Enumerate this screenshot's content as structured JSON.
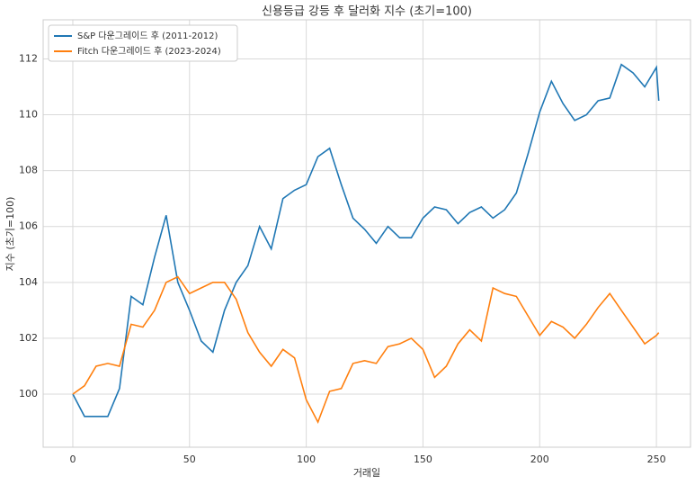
{
  "chart_data": {
    "type": "line",
    "title": "신용등급 강등 후 달러화 지수 (초기=100)",
    "xlabel": "거래일",
    "ylabel": "지수 (초기=100)",
    "x": [
      0,
      5,
      10,
      15,
      20,
      25,
      30,
      35,
      40,
      45,
      50,
      55,
      60,
      65,
      70,
      75,
      80,
      85,
      90,
      95,
      100,
      105,
      110,
      115,
      120,
      125,
      130,
      135,
      140,
      145,
      150,
      155,
      160,
      165,
      170,
      175,
      180,
      185,
      190,
      195,
      200,
      205,
      210,
      215,
      220,
      225,
      230,
      235,
      240,
      245,
      250,
      251
    ],
    "series": [
      {
        "name": "S&P 다운그레이드 후 (2011-2012)",
        "color": "#1f77b4",
        "values": [
          100.0,
          99.2,
          99.2,
          99.2,
          100.2,
          103.5,
          103.2,
          104.9,
          106.4,
          104.0,
          103.0,
          101.9,
          101.5,
          103.0,
          104.0,
          104.6,
          106.0,
          105.2,
          107.0,
          107.3,
          107.5,
          108.5,
          108.8,
          107.5,
          106.3,
          105.9,
          105.4,
          106.0,
          105.6,
          105.6,
          106.3,
          106.7,
          106.6,
          106.1,
          106.5,
          106.7,
          106.3,
          106.6,
          107.2,
          108.6,
          110.1,
          111.2,
          110.4,
          109.8,
          110.0,
          110.5,
          110.6,
          111.8,
          111.5,
          111.0,
          111.7,
          110.5
        ]
      },
      {
        "name": "Fitch 다운그레이드 후 (2023-2024)",
        "color": "#ff7f0e",
        "values": [
          100.0,
          100.3,
          101.0,
          101.1,
          101.0,
          102.5,
          102.4,
          103.0,
          104.0,
          104.2,
          103.6,
          103.8,
          104.0,
          104.0,
          103.4,
          102.2,
          101.5,
          101.0,
          101.6,
          101.3,
          99.8,
          99.0,
          100.1,
          100.2,
          101.1,
          101.2,
          101.1,
          101.7,
          101.8,
          102.0,
          101.6,
          100.6,
          101.0,
          101.8,
          102.3,
          101.9,
          103.8,
          103.6,
          103.5,
          102.8,
          102.1,
          102.6,
          102.4,
          102.0,
          102.5,
          103.1,
          103.6,
          103.0,
          102.4,
          101.8,
          102.1,
          102.2
        ]
      }
    ],
    "xlim": [
      -12.7,
      264.6
    ],
    "xticks": [
      0,
      50,
      100,
      150,
      200,
      250
    ],
    "ylim": [
      98.1,
      113.4
    ],
    "yticks": [
      100,
      102,
      104,
      106,
      108,
      110,
      112
    ],
    "grid": true,
    "legend": "upper left"
  }
}
